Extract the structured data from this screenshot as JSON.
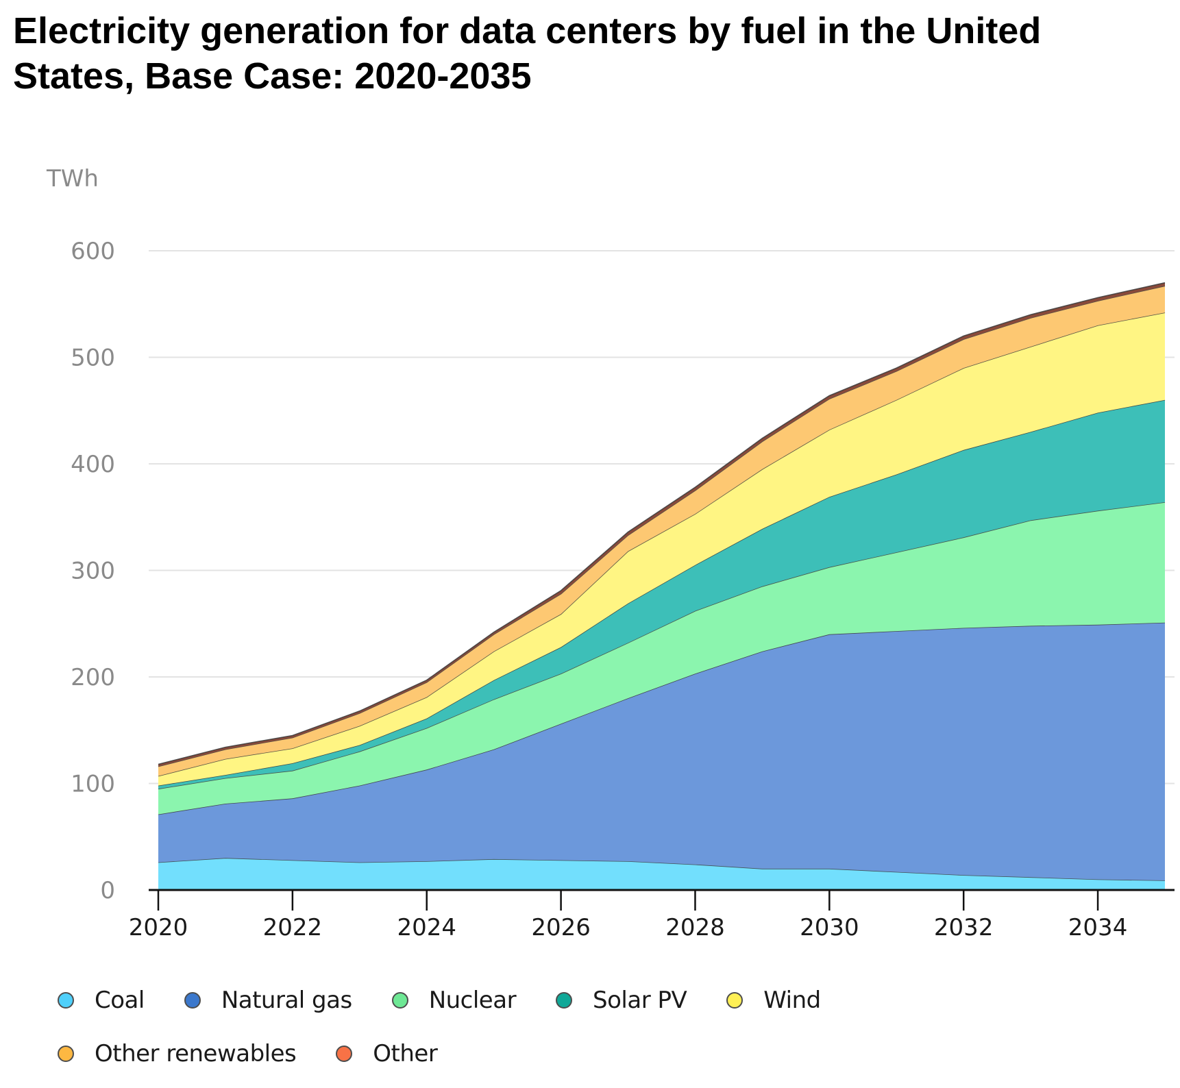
{
  "chart_data": {
    "type": "area",
    "stacked": true,
    "title": "Electricity generation for data centers by fuel in the United States, Base Case: 2020-2035",
    "ylabel": "TWh",
    "xlabel": "",
    "ylim": [
      0,
      600
    ],
    "xlim": [
      2020,
      2035
    ],
    "yticks": [
      0,
      100,
      200,
      300,
      400,
      500,
      600
    ],
    "ytick_labels": [
      "0",
      "100",
      "200",
      "300",
      "400",
      "500",
      "600"
    ],
    "xticks": [
      2020,
      2022,
      2024,
      2026,
      2028,
      2030,
      2032,
      2034
    ],
    "xtick_labels": [
      "2020",
      "2022",
      "2024",
      "2026",
      "2028",
      "2030",
      "2032",
      "2034"
    ],
    "grid": "horizontal",
    "legend_position": "bottom",
    "x": [
      2020,
      2021,
      2022,
      2023,
      2024,
      2025,
      2026,
      2027,
      2028,
      2029,
      2030,
      2031,
      2032,
      2033,
      2034,
      2035
    ],
    "series": [
      {
        "name": "Coal",
        "color": "#72dffd",
        "legend_color": "#4fd0fb",
        "values": [
          26,
          30,
          28,
          26,
          27,
          29,
          28,
          27,
          24,
          20,
          20,
          17,
          14,
          12,
          10,
          9
        ]
      },
      {
        "name": "Natural gas",
        "color": "#6c98db",
        "legend_color": "#3b78cc",
        "values": [
          45,
          51,
          58,
          72,
          86,
          103,
          128,
          153,
          179,
          204,
          220,
          226,
          232,
          236,
          239,
          242
        ]
      },
      {
        "name": "Nuclear",
        "color": "#8bf5ae",
        "legend_color": "#6ee895",
        "values": [
          24,
          24,
          26,
          32,
          39,
          47,
          47,
          52,
          59,
          61,
          63,
          74,
          85,
          99,
          107,
          113
        ]
      },
      {
        "name": "Solar PV",
        "color": "#3dbfb8",
        "legend_color": "#10a898",
        "values": [
          3,
          3,
          7,
          6,
          9,
          18,
          25,
          37,
          43,
          54,
          66,
          73,
          82,
          83,
          92,
          96
        ]
      },
      {
        "name": "Wind",
        "color": "#fff583",
        "legend_color": "#fff055",
        "values": [
          9,
          15,
          14,
          18,
          20,
          27,
          31,
          49,
          48,
          56,
          63,
          70,
          77,
          80,
          82,
          82
        ]
      },
      {
        "name": "Other renewables",
        "color": "#fdc872",
        "legend_color": "#fdb842",
        "values": [
          9,
          9,
          10,
          12,
          14,
          16,
          19,
          15,
          22,
          26,
          29,
          27,
          27,
          27,
          23,
          25
        ]
      },
      {
        "name": "Other",
        "color": "#8a4a3a",
        "legend_color": "#f87246",
        "values": [
          2,
          2,
          2,
          2,
          2,
          2,
          3,
          3,
          3,
          3,
          3,
          3,
          3,
          3,
          3,
          3
        ]
      }
    ]
  },
  "legend": {
    "row1": [
      {
        "label": "Coal",
        "color": "#4fd0fb"
      },
      {
        "label": "Natural gas",
        "color": "#3b78cc"
      },
      {
        "label": "Nuclear",
        "color": "#6ee895"
      },
      {
        "label": "Solar PV",
        "color": "#10a898"
      },
      {
        "label": "Wind",
        "color": "#fff055"
      }
    ],
    "row2": [
      {
        "label": "Other renewables",
        "color": "#fdb842"
      },
      {
        "label": "Other",
        "color": "#f87246"
      }
    ]
  }
}
